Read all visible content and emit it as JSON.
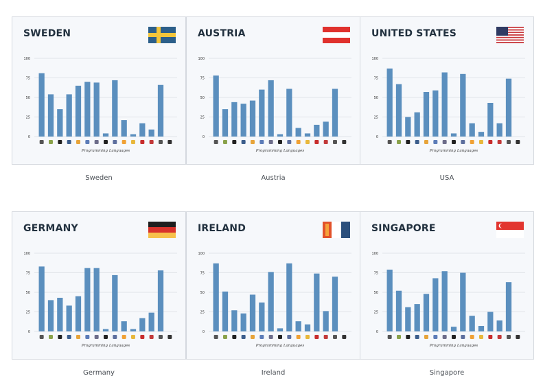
{
  "chart_data": [
    {
      "type": "bar",
      "title": "SWEDEN",
      "caption": "Sweden",
      "xlabel": "Programming Languages",
      "ylabel": "",
      "ylim": [
        0,
        100
      ],
      "yticks": [
        0,
        25,
        50,
        75,
        100
      ],
      "categories": [
        "java-icon",
        "android-icon",
        "swift-icon",
        "c-icon",
        "javascript-icon",
        "cpp-icon",
        "csharp-icon",
        "objc-icon",
        "php-icon",
        "r-icon",
        "python-icon",
        "ruby-icon",
        "ruby-on-rails-icon",
        "perl-icon",
        "unity-icon"
      ],
      "values": [
        81,
        54,
        35,
        54,
        65,
        70,
        69,
        4,
        72,
        21,
        3,
        17,
        9,
        66,
        0
      ],
      "flag": {
        "type": "nordic",
        "colors": [
          "#2c5f8a",
          "#f3c53a"
        ]
      }
    },
    {
      "type": "bar",
      "title": "AUSTRIA",
      "caption": "Austria",
      "xlabel": "Programming Languages",
      "ylabel": "",
      "ylim": [
        0,
        100
      ],
      "yticks": [
        0,
        25,
        50,
        75,
        100
      ],
      "categories": [
        "java-icon",
        "android-icon",
        "swift-icon",
        "c-icon",
        "javascript-icon",
        "cpp-icon",
        "csharp-icon",
        "objc-icon",
        "php-icon",
        "r-icon",
        "python-icon",
        "ruby-icon",
        "ruby-on-rails-icon",
        "perl-icon",
        "unity-icon"
      ],
      "values": [
        78,
        35,
        44,
        42,
        46,
        60,
        72,
        3,
        61,
        11,
        4,
        15,
        19,
        61,
        0
      ],
      "flag": {
        "type": "hstripes",
        "colors": [
          "#e0312d",
          "#ffffff",
          "#e0312d"
        ]
      }
    },
    {
      "type": "bar",
      "title": "UNITED STATES",
      "caption": "USA",
      "xlabel": "Programming Languages",
      "ylabel": "",
      "ylim": [
        0,
        100
      ],
      "yticks": [
        0,
        25,
        50,
        75,
        100
      ],
      "categories": [
        "java-icon",
        "android-icon",
        "swift-icon",
        "c-icon",
        "javascript-icon",
        "cpp-icon",
        "csharp-icon",
        "objc-icon",
        "php-icon",
        "r-icon",
        "python-icon",
        "ruby-icon",
        "ruby-on-rails-icon",
        "perl-icon",
        "unity-icon"
      ],
      "values": [
        87,
        67,
        25,
        31,
        57,
        59,
        82,
        4,
        80,
        17,
        6,
        43,
        17,
        74,
        0
      ],
      "flag": {
        "type": "usa",
        "colors": [
          "#c8393d",
          "#ffffff",
          "#2f3b63"
        ]
      }
    },
    {
      "type": "bar",
      "title": "GERMANY",
      "caption": "Germany",
      "xlabel": "Programming Languages",
      "ylabel": "",
      "ylim": [
        0,
        100
      ],
      "yticks": [
        0,
        25,
        50,
        75,
        100
      ],
      "categories": [
        "java-icon",
        "android-icon",
        "swift-icon",
        "c-icon",
        "javascript-icon",
        "cpp-icon",
        "csharp-icon",
        "objc-icon",
        "php-icon",
        "r-icon",
        "python-icon",
        "ruby-icon",
        "ruby-on-rails-icon",
        "perl-icon",
        "unity-icon"
      ],
      "values": [
        83,
        40,
        43,
        33,
        45,
        81,
        81,
        3,
        72,
        13,
        3,
        17,
        24,
        78,
        0
      ],
      "flag": {
        "type": "hstripes",
        "colors": [
          "#1e1e1e",
          "#d8322b",
          "#f7c14b"
        ]
      }
    },
    {
      "type": "bar",
      "title": "IRELAND",
      "caption": "Ireland",
      "xlabel": "Programming Languages",
      "ylabel": "",
      "ylim": [
        0,
        100
      ],
      "yticks": [
        0,
        25,
        50,
        75,
        100
      ],
      "categories": [
        "java-icon",
        "android-icon",
        "swift-icon",
        "c-icon",
        "javascript-icon",
        "cpp-icon",
        "csharp-icon",
        "objc-icon",
        "php-icon",
        "r-icon",
        "python-icon",
        "ruby-icon",
        "ruby-on-rails-icon",
        "perl-icon",
        "unity-icon"
      ],
      "values": [
        87,
        51,
        27,
        23,
        47,
        37,
        76,
        4,
        87,
        13,
        9,
        74,
        26,
        70,
        0
      ],
      "flag": {
        "type": "ireland",
        "colors": [
          "#e2522b",
          "#f5a23a",
          "#ffffff",
          "#2b4f7c"
        ]
      }
    },
    {
      "type": "bar",
      "title": "SINGAPORE",
      "caption": "Singapore",
      "xlabel": "Programming Languages",
      "ylabel": "",
      "ylim": [
        0,
        100
      ],
      "yticks": [
        0,
        25,
        50,
        75,
        100
      ],
      "categories": [
        "java-icon",
        "android-icon",
        "swift-icon",
        "c-icon",
        "javascript-icon",
        "cpp-icon",
        "csharp-icon",
        "objc-icon",
        "php-icon",
        "r-icon",
        "python-icon",
        "ruby-icon",
        "ruby-on-rails-icon",
        "perl-icon",
        "unity-icon"
      ],
      "values": [
        79,
        52,
        31,
        35,
        48,
        68,
        77,
        6,
        75,
        20,
        7,
        25,
        14,
        63,
        0
      ],
      "flag": {
        "type": "singapore",
        "colors": [
          "#e2352f",
          "#ffffff"
        ]
      }
    }
  ],
  "style": {
    "bar_color": "#5b8fbe",
    "grid_color": "#c9ced6",
    "icon_colors": [
      "#555555",
      "#8aa24b",
      "#222222",
      "#3c5e8c",
      "#e7a43a",
      "#5c7cb8",
      "#6d6d8a",
      "#222222",
      "#5d6f9e",
      "#f0a135",
      "#e8b83c",
      "#c82d2d",
      "#c23a3a",
      "#555555",
      "#333333"
    ]
  }
}
